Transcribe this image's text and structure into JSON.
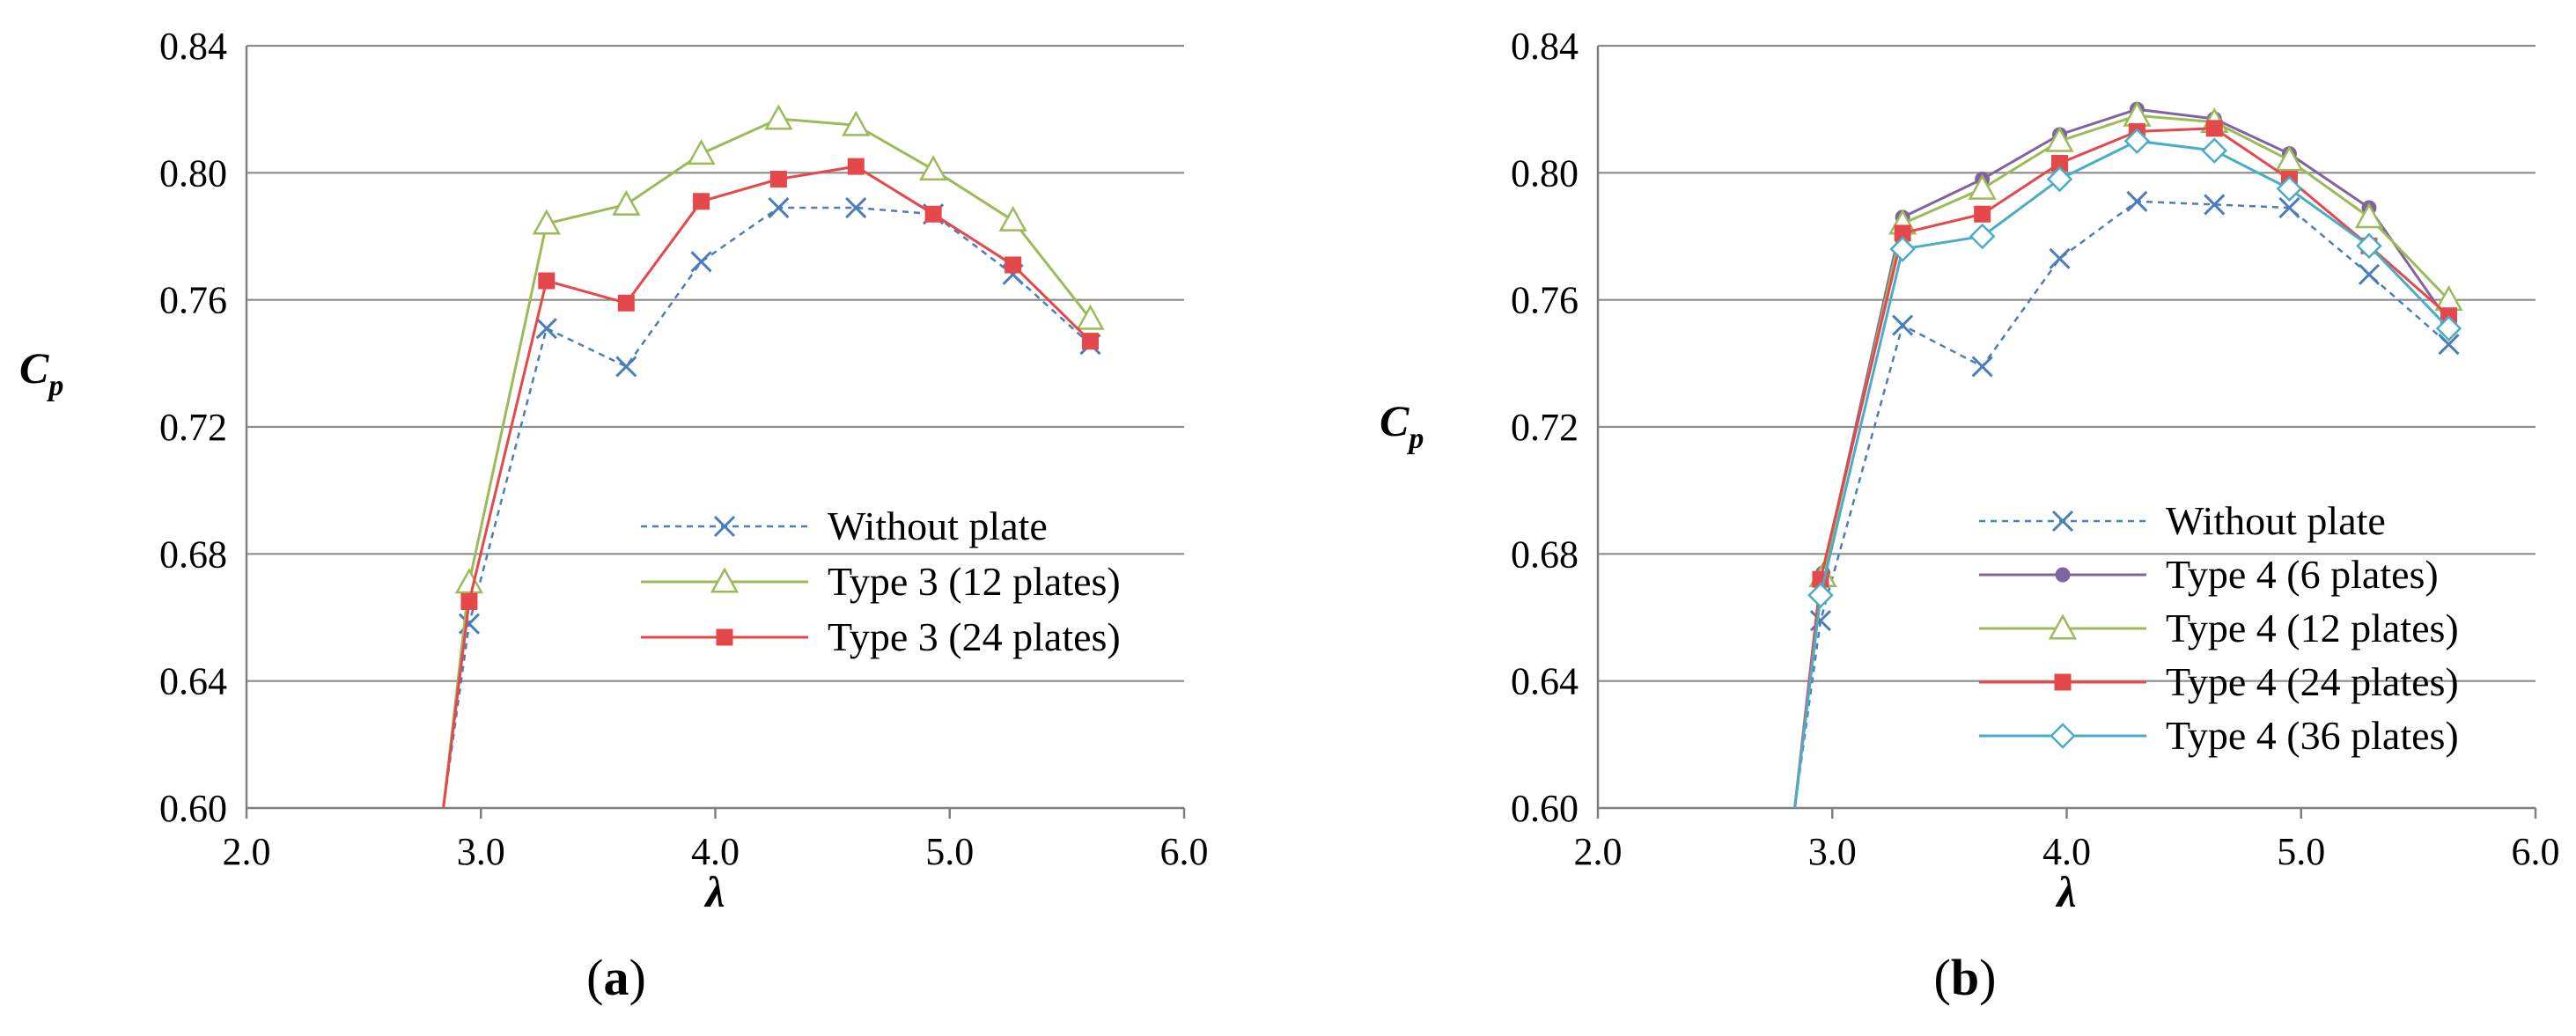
{
  "chart_data": [
    {
      "type": "line",
      "panel_label": "(a)",
      "xlabel": "λ",
      "ylabel": "C",
      "ylabel_sub": "p",
      "xlim": [
        2.0,
        6.0
      ],
      "ylim": [
        0.6,
        0.84
      ],
      "x_ticks": [
        "2.0",
        "3.0",
        "4.0",
        "5.0",
        "6.0"
      ],
      "y_ticks": [
        "0.60",
        "0.64",
        "0.68",
        "0.72",
        "0.76",
        "0.80",
        "0.84"
      ],
      "grid": "horizontal",
      "legend_position": "bottom-right",
      "series": [
        {
          "name": "Without plate",
          "color": "#4A7EBB",
          "marker": "x",
          "dashed": true,
          "x": [
            2.84,
            2.95,
            3.28,
            3.62,
            3.94,
            4.27,
            4.6,
            4.93,
            5.27,
            5.6
          ],
          "y": [
            0.6,
            0.658,
            0.751,
            0.739,
            0.772,
            0.789,
            0.789,
            0.787,
            0.768,
            0.746
          ]
        },
        {
          "name": "Type 3 (12 plates)",
          "color": "#9BBB59",
          "marker": "triangle",
          "dashed": false,
          "x": [
            2.84,
            2.95,
            3.28,
            3.62,
            3.94,
            4.27,
            4.6,
            4.93,
            5.27,
            5.6
          ],
          "y": [
            0.6,
            0.671,
            0.784,
            0.79,
            0.806,
            0.817,
            0.815,
            0.801,
            0.785,
            0.754
          ]
        },
        {
          "name": "Type 3 (24 plates)",
          "color": "#E5484B",
          "marker": "square",
          "dashed": false,
          "x": [
            2.84,
            2.95,
            3.28,
            3.62,
            3.94,
            4.27,
            4.6,
            4.93,
            5.27,
            5.6
          ],
          "y": [
            0.6,
            0.665,
            0.766,
            0.759,
            0.791,
            0.798,
            0.802,
            0.787,
            0.771,
            0.747
          ]
        }
      ]
    },
    {
      "type": "line",
      "panel_label": "(b)",
      "xlabel": "λ",
      "ylabel": "C",
      "ylabel_sub": "p",
      "xlim": [
        2.0,
        6.0
      ],
      "ylim": [
        0.6,
        0.84
      ],
      "x_ticks": [
        "2.0",
        "3.0",
        "4.0",
        "5.0",
        "6.0"
      ],
      "y_ticks": [
        "0.60",
        "0.64",
        "0.68",
        "0.72",
        "0.76",
        "0.80",
        "0.84"
      ],
      "grid": "horizontal",
      "legend_position": "bottom-right",
      "series": [
        {
          "name": "Without plate",
          "color": "#4A7EBB",
          "marker": "x",
          "dashed": true,
          "x": [
            2.84,
            2.95,
            3.3,
            3.64,
            3.97,
            4.3,
            4.63,
            4.95,
            5.29,
            5.63
          ],
          "y": [
            0.6,
            0.659,
            0.752,
            0.739,
            0.773,
            0.791,
            0.79,
            0.789,
            0.768,
            0.746
          ]
        },
        {
          "name": "Type 4 (6 plates)",
          "color": "#8064A2",
          "marker": "circle",
          "dashed": false,
          "x": [
            2.84,
            2.96,
            3.3,
            3.64,
            3.97,
            4.3,
            4.63,
            4.95,
            5.29,
            5.63
          ],
          "y": [
            0.6,
            0.674,
            0.786,
            0.798,
            0.812,
            0.82,
            0.817,
            0.806,
            0.789,
            0.753
          ]
        },
        {
          "name": "Type 4 (12 plates)",
          "color": "#9BBB59",
          "marker": "triangle",
          "dashed": false,
          "x": [
            2.84,
            2.96,
            3.3,
            3.64,
            3.97,
            4.3,
            4.63,
            4.95,
            5.29,
            5.63
          ],
          "y": [
            0.6,
            0.673,
            0.784,
            0.795,
            0.81,
            0.818,
            0.816,
            0.804,
            0.786,
            0.76
          ]
        },
        {
          "name": "Type 4 (24 plates)",
          "color": "#E5484B",
          "marker": "square",
          "dashed": false,
          "x": [
            2.84,
            2.95,
            3.3,
            3.64,
            3.97,
            4.3,
            4.63,
            4.95,
            5.29,
            5.63
          ],
          "y": [
            0.6,
            0.672,
            0.781,
            0.787,
            0.803,
            0.813,
            0.814,
            0.798,
            0.777,
            0.755
          ]
        },
        {
          "name": "Type 4 (36 plates)",
          "color": "#4BACC6",
          "marker": "diamond",
          "dashed": false,
          "x": [
            2.84,
            2.95,
            3.3,
            3.64,
            3.97,
            4.3,
            4.63,
            4.95,
            5.29,
            5.63
          ],
          "y": [
            0.6,
            0.667,
            0.776,
            0.78,
            0.798,
            0.81,
            0.807,
            0.795,
            0.777,
            0.751
          ]
        }
      ]
    }
  ]
}
